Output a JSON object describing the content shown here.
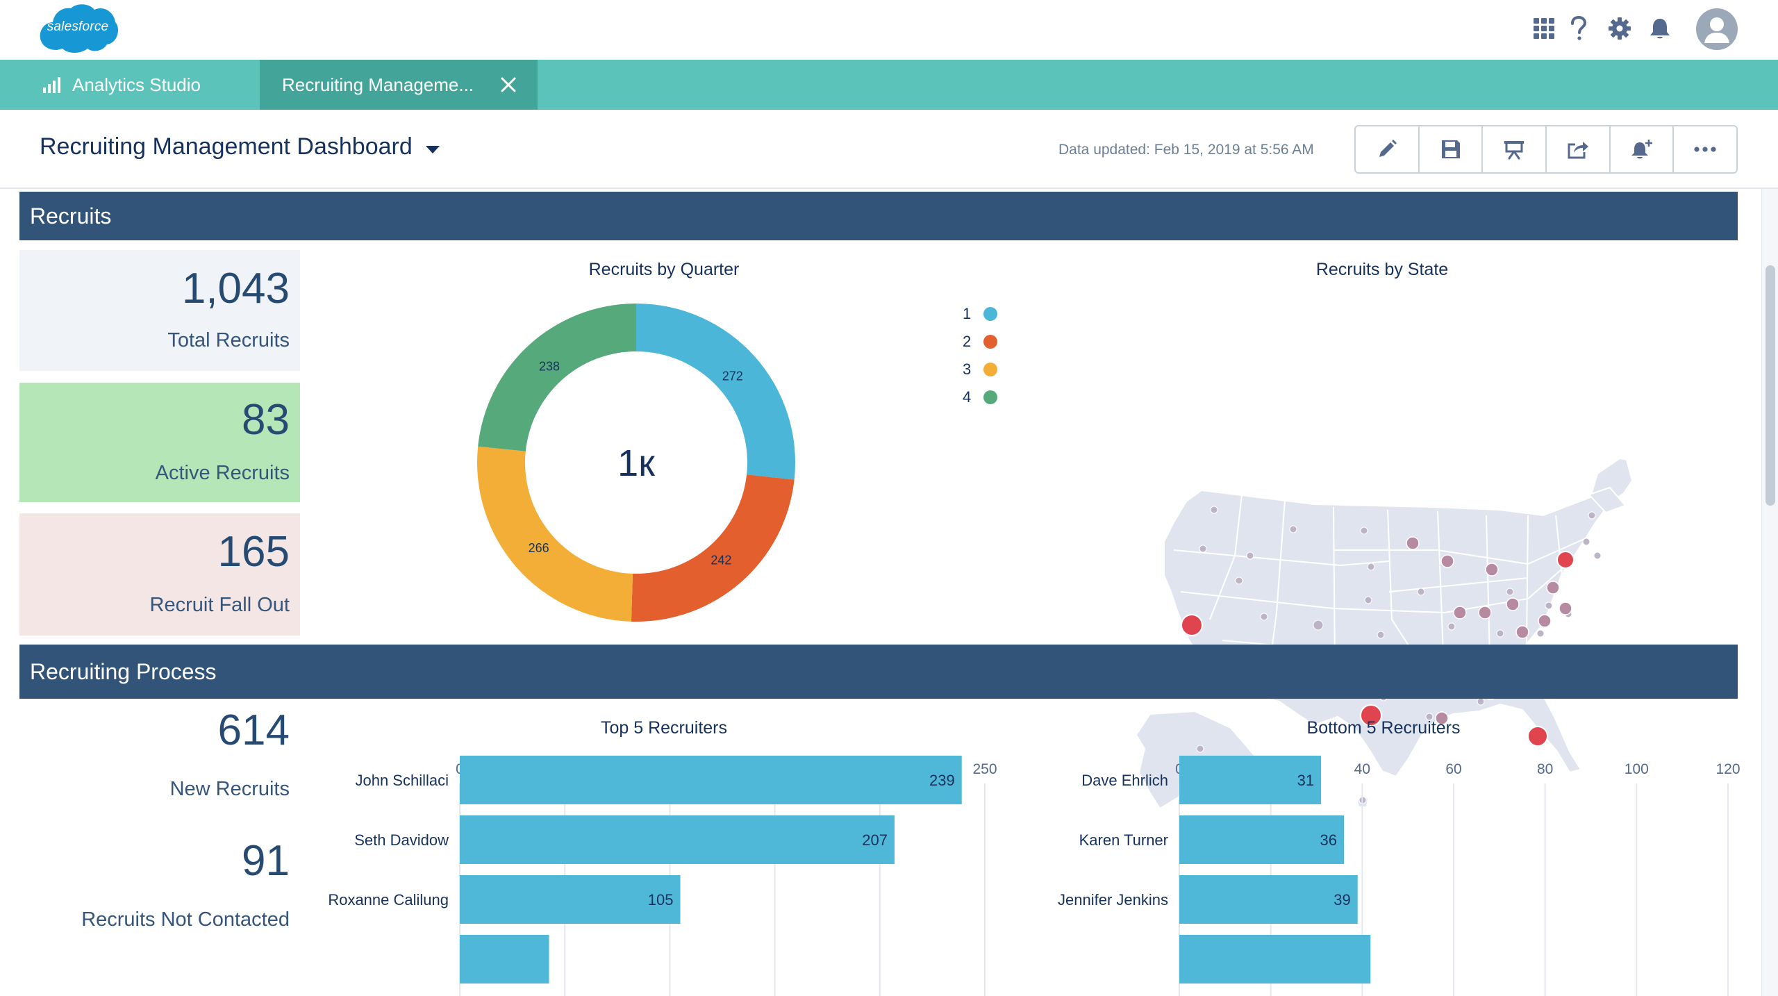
{
  "header": {
    "logo_text": "salesforce",
    "icons": [
      "app-launcher-icon",
      "help-icon",
      "setup-gear-icon",
      "notifications-bell-icon"
    ],
    "avatar_icon": "user-avatar-icon"
  },
  "tabs": [
    {
      "label": "Analytics Studio",
      "icon": "bar-chart-icon"
    },
    {
      "label": "Recruiting Manageme...",
      "icon": "close-icon",
      "active": true
    }
  ],
  "dashboard": {
    "title": "Recruiting Management Dashboard",
    "data_updated": "Data updated: Feb 15, 2019 at 5:56 AM",
    "toolbar": [
      "edit-pencil-icon",
      "save-icon",
      "present-icon",
      "share-icon",
      "subscribe-bell-icon",
      "more-actions-icon"
    ]
  },
  "sections": {
    "recruits": "Recruits",
    "process": "Recruiting Process"
  },
  "kpis": {
    "total": {
      "value": "1,043",
      "label": "Total Recruits"
    },
    "active": {
      "value": "83",
      "label": "Active Recruits"
    },
    "fallout": {
      "value": "165",
      "label": "Recruit Fall Out"
    },
    "new": {
      "value": "614",
      "label": "New Recruits"
    },
    "not_contacted": {
      "value": "91",
      "label": "Recruits Not Contacted"
    }
  },
  "colors": {
    "section_bar": "#325479",
    "tab_bar": "#5bc3b9",
    "bar": "#4fb8d9",
    "q1": "#4cb6d8",
    "q2": "#e35f2e",
    "q3": "#f3ae37",
    "q4": "#56a97b",
    "kpi_total_bg": "#f0f3f7",
    "kpi_active_bg": "#b5e6b7",
    "kpi_fallout_bg": "#f3e6e5"
  },
  "chart_data": [
    {
      "type": "pie",
      "title": "Recruits by Quarter",
      "center_label": "1к",
      "categories": [
        "1",
        "2",
        "3",
        "4"
      ],
      "values": [
        272,
        242,
        266,
        238
      ],
      "legend": "right"
    },
    {
      "type": "scatter",
      "title": "Recruits by State",
      "note": "US map with proportional markers",
      "highlighted_markers": [
        "California",
        "Texas",
        "Florida",
        "New York"
      ]
    },
    {
      "type": "bar",
      "orientation": "horizontal",
      "title": "Top 5 Recruiters",
      "categories": [
        "John Schillaci",
        "Seth Davidow",
        "Roxanne Calilung"
      ],
      "values": [
        239,
        207,
        105
      ],
      "xlim": [
        0,
        250
      ],
      "ticks": [
        "0",
        "50",
        "100",
        "150",
        "200",
        "250"
      ]
    },
    {
      "type": "bar",
      "orientation": "horizontal",
      "title": "Bottom 5 Recruiters",
      "categories": [
        "Dave Ehrlich",
        "Karen Turner",
        "Jennifer Jenkins"
      ],
      "values": [
        31,
        36,
        39
      ],
      "xlim": [
        0,
        120
      ],
      "ticks": [
        "0",
        "20",
        "40",
        "60",
        "80",
        "100",
        "120"
      ]
    }
  ]
}
